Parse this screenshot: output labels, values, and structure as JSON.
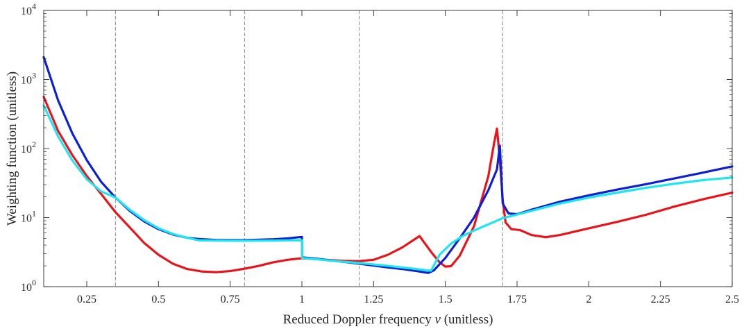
{
  "chart_data": {
    "type": "line",
    "title": "",
    "xlabel": "Reduced Doppler frequency ",
    "xlabel_symbol": "ν",
    "xlabel_unit": " (unitless)",
    "ylabel": "Weighting function (unitless)",
    "xlim": [
      0.1,
      2.5
    ],
    "ylim": [
      1,
      10000
    ],
    "yscale": "log",
    "grid": false,
    "x_ticks": [
      {
        "value": 0.25,
        "label": "0.25"
      },
      {
        "value": 0.5,
        "label": "0.5"
      },
      {
        "value": 0.75,
        "label": "0.75"
      },
      {
        "value": 1.0,
        "label": "1"
      },
      {
        "value": 1.25,
        "label": "1.25"
      },
      {
        "value": 1.5,
        "label": "1.5"
      },
      {
        "value": 1.75,
        "label": "1.75"
      },
      {
        "value": 2.0,
        "label": "2"
      },
      {
        "value": 2.25,
        "label": "2.25"
      },
      {
        "value": 2.5,
        "label": "2.5"
      }
    ],
    "y_ticks": [
      {
        "value": 1,
        "base": "10",
        "exp": "0"
      },
      {
        "value": 10,
        "base": "10",
        "exp": "1"
      },
      {
        "value": 100,
        "base": "10",
        "exp": "2"
      },
      {
        "value": 1000,
        "base": "10",
        "exp": "3"
      },
      {
        "value": 10000,
        "base": "10",
        "exp": "4"
      }
    ],
    "reference_lines_x": [
      0.35,
      0.8,
      1.2,
      1.7
    ],
    "series": [
      {
        "color": "#e8141a",
        "points": [
          [
            0.1,
            560
          ],
          [
            0.15,
            180
          ],
          [
            0.2,
            80
          ],
          [
            0.25,
            40
          ],
          [
            0.3,
            22
          ],
          [
            0.35,
            12
          ],
          [
            0.4,
            7.2
          ],
          [
            0.45,
            4.3
          ],
          [
            0.5,
            2.9
          ],
          [
            0.55,
            2.15
          ],
          [
            0.6,
            1.8
          ],
          [
            0.65,
            1.66
          ],
          [
            0.7,
            1.62
          ],
          [
            0.75,
            1.68
          ],
          [
            0.8,
            1.82
          ],
          [
            0.85,
            2.0
          ],
          [
            0.9,
            2.25
          ],
          [
            0.95,
            2.45
          ],
          [
            1.0,
            2.58
          ],
          [
            1.05,
            2.5
          ],
          [
            1.1,
            2.42
          ],
          [
            1.15,
            2.36
          ],
          [
            1.2,
            2.34
          ],
          [
            1.25,
            2.45
          ],
          [
            1.3,
            2.9
          ],
          [
            1.35,
            3.7
          ],
          [
            1.41,
            5.4
          ],
          [
            1.45,
            3.2
          ],
          [
            1.48,
            2.25
          ],
          [
            1.5,
            1.95
          ],
          [
            1.52,
            1.98
          ],
          [
            1.55,
            2.8
          ],
          [
            1.6,
            7.5
          ],
          [
            1.65,
            40
          ],
          [
            1.67,
            120
          ],
          [
            1.68,
            195
          ],
          [
            1.69,
            70
          ],
          [
            1.7,
            18
          ],
          [
            1.71,
            8.5
          ],
          [
            1.73,
            6.8
          ],
          [
            1.76,
            6.6
          ],
          [
            1.8,
            5.6
          ],
          [
            1.85,
            5.2
          ],
          [
            1.9,
            5.6
          ],
          [
            2.0,
            7.0
          ],
          [
            2.1,
            8.7
          ],
          [
            2.2,
            11
          ],
          [
            2.3,
            14.5
          ],
          [
            2.4,
            18.5
          ],
          [
            2.5,
            23
          ]
        ]
      },
      {
        "color": "#0d1fd4",
        "points": [
          [
            0.1,
            2100
          ],
          [
            0.15,
            500
          ],
          [
            0.2,
            165
          ],
          [
            0.25,
            68
          ],
          [
            0.3,
            33
          ],
          [
            0.35,
            19.5
          ],
          [
            0.4,
            12.5
          ],
          [
            0.45,
            8.8
          ],
          [
            0.5,
            6.8
          ],
          [
            0.55,
            5.7
          ],
          [
            0.6,
            5.1
          ],
          [
            0.64,
            4.9
          ],
          [
            0.7,
            4.75
          ],
          [
            0.8,
            4.72
          ],
          [
            0.9,
            4.85
          ],
          [
            0.95,
            5.0
          ],
          [
            1.0,
            5.25
          ],
          [
            1.001,
            2.65
          ],
          [
            1.05,
            2.55
          ],
          [
            1.1,
            2.4
          ],
          [
            1.2,
            2.15
          ],
          [
            1.3,
            1.9
          ],
          [
            1.35,
            1.8
          ],
          [
            1.4,
            1.68
          ],
          [
            1.44,
            1.58
          ],
          [
            1.46,
            1.72
          ],
          [
            1.5,
            2.6
          ],
          [
            1.55,
            5.0
          ],
          [
            1.6,
            10
          ],
          [
            1.65,
            25
          ],
          [
            1.68,
            50
          ],
          [
            1.69,
            110
          ],
          [
            1.7,
            16
          ],
          [
            1.72,
            11.5
          ],
          [
            1.75,
            11.2
          ],
          [
            1.8,
            13
          ],
          [
            1.9,
            17
          ],
          [
            2.0,
            21
          ],
          [
            2.1,
            25.5
          ],
          [
            2.2,
            30.5
          ],
          [
            2.3,
            37
          ],
          [
            2.4,
            45
          ],
          [
            2.5,
            55
          ]
        ]
      },
      {
        "color": "#1ee6f0",
        "points": [
          [
            0.1,
            420
          ],
          [
            0.15,
            150
          ],
          [
            0.2,
            67
          ],
          [
            0.25,
            36
          ],
          [
            0.3,
            24
          ],
          [
            0.35,
            19.5
          ],
          [
            0.4,
            13
          ],
          [
            0.45,
            9.2
          ],
          [
            0.5,
            7.0
          ],
          [
            0.55,
            5.8
          ],
          [
            0.6,
            5.1
          ],
          [
            0.64,
            4.7
          ],
          [
            0.7,
            4.65
          ],
          [
            0.8,
            4.62
          ],
          [
            0.9,
            4.65
          ],
          [
            0.95,
            4.68
          ],
          [
            1.0,
            4.7
          ],
          [
            1.001,
            2.6
          ],
          [
            1.05,
            2.5
          ],
          [
            1.1,
            2.38
          ],
          [
            1.2,
            2.2
          ],
          [
            1.3,
            2.0
          ],
          [
            1.4,
            1.8
          ],
          [
            1.45,
            1.7
          ],
          [
            1.48,
            2.9
          ],
          [
            1.52,
            4.2
          ],
          [
            1.56,
            5.4
          ],
          [
            1.6,
            6.5
          ],
          [
            1.7,
            9.8
          ],
          [
            1.8,
            12.5
          ],
          [
            1.9,
            16
          ],
          [
            2.0,
            19.5
          ],
          [
            2.1,
            23
          ],
          [
            2.2,
            27
          ],
          [
            2.3,
            31
          ],
          [
            2.4,
            35
          ],
          [
            2.5,
            38
          ]
        ]
      }
    ]
  }
}
